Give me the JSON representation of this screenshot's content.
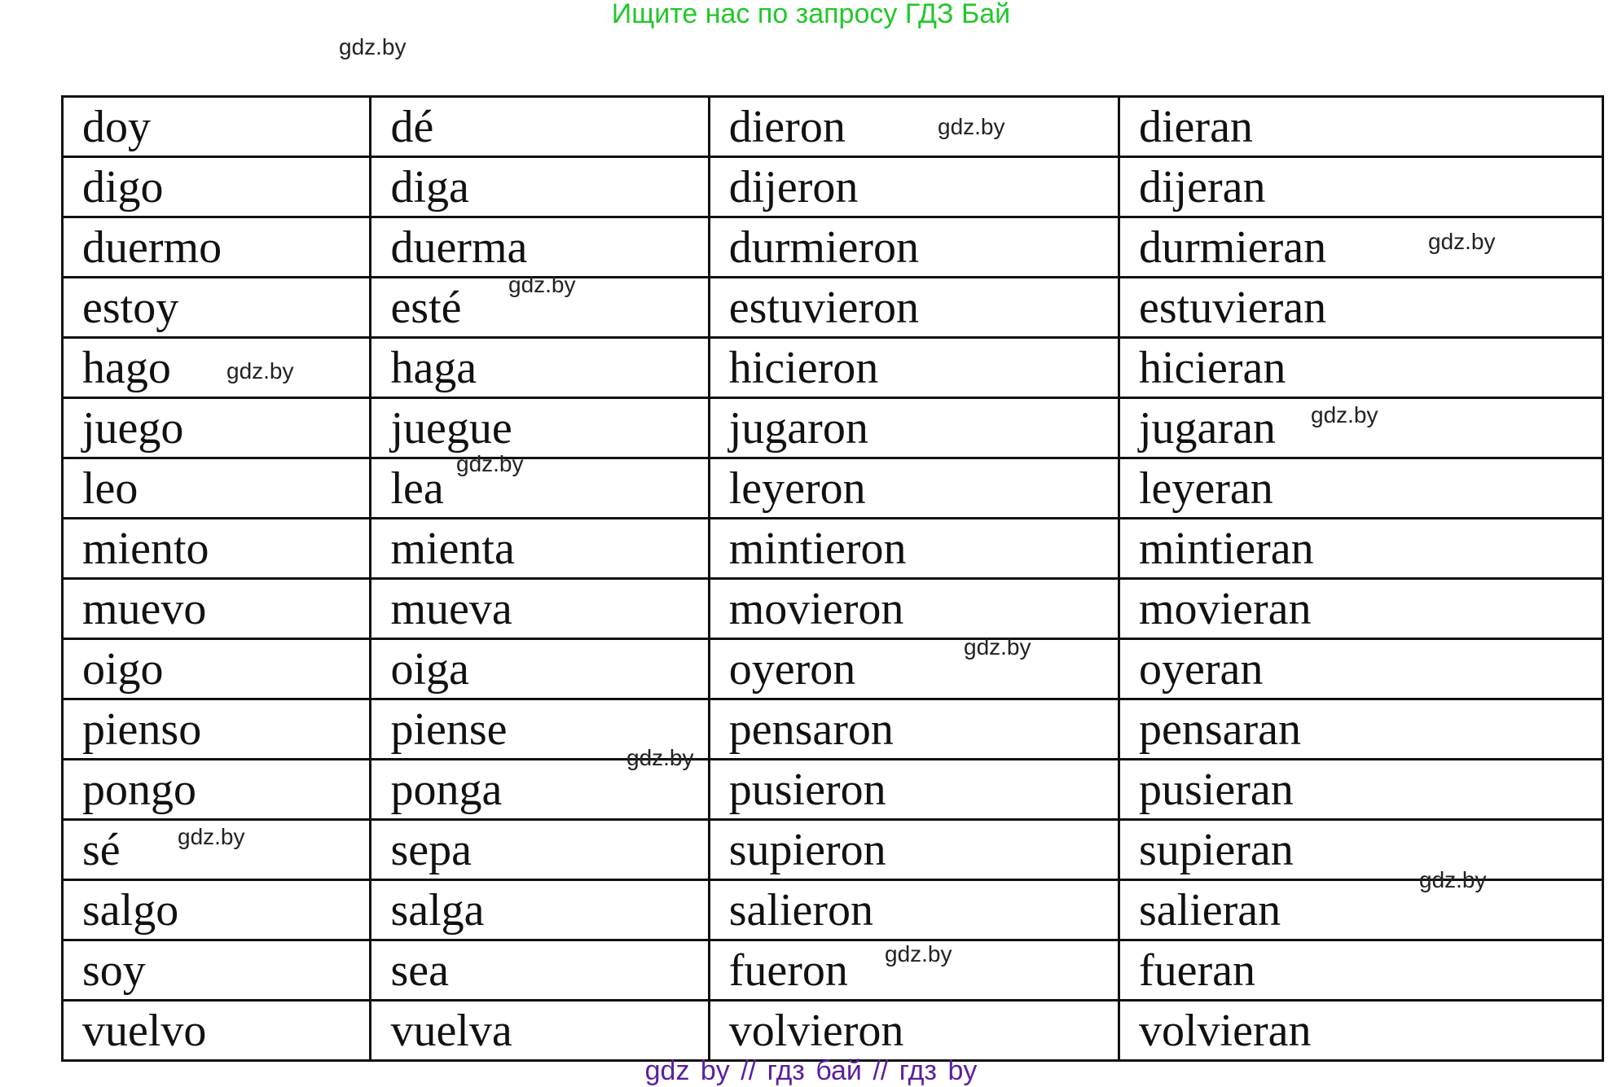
{
  "header": {
    "text": "Ищите нас по запросу ГДЗ Бай",
    "color": "#22c72a"
  },
  "footer": {
    "text": "gdz by  //  гдз бай  //  гдз by",
    "color": "#5b1fa0"
  },
  "watermark": "gdz.by",
  "table": {
    "rows": [
      [
        "doy",
        "dé",
        "dieron",
        "dieran"
      ],
      [
        "digo",
        "diga",
        "dijeron",
        "dijeran"
      ],
      [
        "duermo",
        "duerma",
        "durmieron",
        "durmieran"
      ],
      [
        "estoy",
        "esté",
        "estuvieron",
        "estuvieran"
      ],
      [
        "hago",
        "haga",
        "hicieron",
        "hicieran"
      ],
      [
        "juego",
        "juegue",
        "jugaron",
        "jugaran"
      ],
      [
        "leo",
        "lea",
        "leyeron",
        "leyeran"
      ],
      [
        "miento",
        "mienta",
        "mintieron",
        "mintieran"
      ],
      [
        "muevo",
        "mueva",
        "movieron",
        "movieran"
      ],
      [
        "oigo",
        "oiga",
        "oyeron",
        "oyeran"
      ],
      [
        "pienso",
        "piense",
        "pensaron",
        "pensaran"
      ],
      [
        "pongo",
        "ponga",
        "pusieron",
        "pusieran"
      ],
      [
        "sé",
        "sepa",
        "supieron",
        "supieran"
      ],
      [
        "salgo",
        "salga",
        "salieron",
        "salieran"
      ],
      [
        "soy",
        "sea",
        "fueron",
        "fueran"
      ],
      [
        "vuelvo",
        "vuelva",
        "volvieron",
        "volvieran"
      ]
    ]
  }
}
